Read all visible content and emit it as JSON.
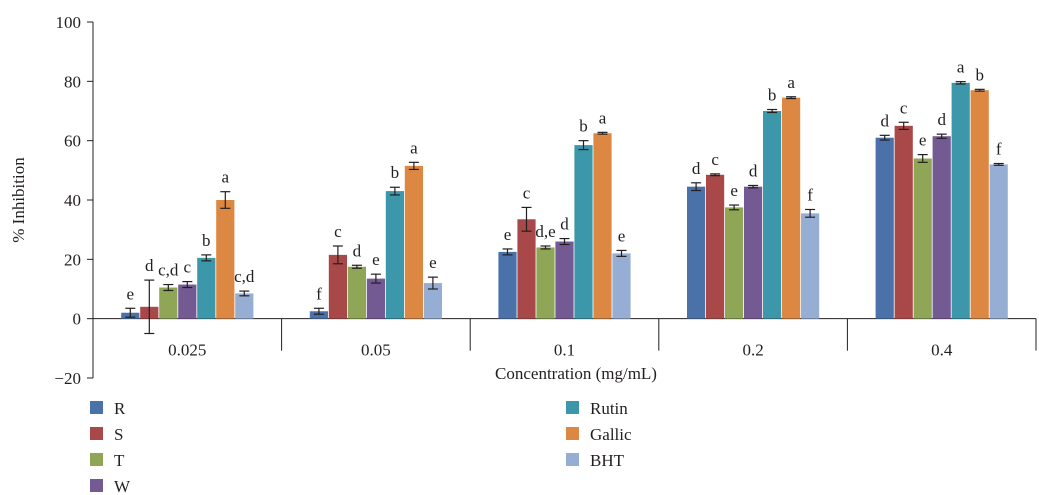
{
  "chart_data": {
    "type": "bar",
    "title": "",
    "xlabel": "Concentration (mg/mL)",
    "ylabel": "% Inhibition",
    "ylim": [
      -20,
      100
    ],
    "yticks": [
      -20,
      0,
      20,
      40,
      60,
      80,
      100
    ],
    "grid": false,
    "error_bars": true,
    "categories": [
      "0.025",
      "0.05",
      "0.1",
      "0.2",
      "0.4"
    ],
    "series": [
      {
        "name": "R",
        "color": "#4a72a8",
        "values": [
          2,
          2.5,
          22.5,
          44.5,
          61
        ],
        "errors": [
          1.5,
          1,
          1,
          1.3,
          0.8
        ],
        "labels": [
          "e",
          "f",
          "e",
          "d",
          "d"
        ]
      },
      {
        "name": "S",
        "color": "#a94848",
        "values": [
          4,
          21.5,
          33.5,
          48.5,
          65
        ],
        "errors": [
          9,
          3,
          4,
          0.3,
          1.2
        ],
        "labels": [
          "d",
          "c",
          "c",
          "c",
          "c"
        ]
      },
      {
        "name": "T",
        "color": "#8ea656",
        "values": [
          10.5,
          17.5,
          24,
          37.5,
          54
        ],
        "errors": [
          1,
          0.5,
          0.5,
          0.8,
          1.3
        ],
        "labels": [
          "c,d",
          "d",
          "d,e",
          "e",
          "e"
        ]
      },
      {
        "name": "W",
        "color": "#735a92",
        "values": [
          11.5,
          13.5,
          26,
          44.5,
          61.5
        ],
        "errors": [
          1,
          1.5,
          1,
          0.4,
          0.7
        ],
        "labels": [
          "c",
          "e",
          "d",
          "d",
          "d"
        ]
      },
      {
        "name": "Rutin",
        "color": "#3d97aa",
        "values": [
          20.5,
          43,
          58.5,
          70,
          79.5
        ],
        "errors": [
          1,
          1.3,
          1.5,
          0.5,
          0.4
        ],
        "labels": [
          "b",
          "b",
          "b",
          "b",
          "a"
        ]
      },
      {
        "name": "Gallic",
        "color": "#dc8843",
        "values": [
          40,
          51.5,
          62.5,
          74.5,
          77
        ],
        "errors": [
          2.8,
          1.2,
          0.3,
          0.3,
          0.3
        ],
        "labels": [
          "a",
          "a",
          "a",
          "a",
          "b"
        ]
      },
      {
        "name": "BHT",
        "color": "#97aed4",
        "values": [
          8.5,
          12,
          22,
          35.5,
          52
        ],
        "errors": [
          0.8,
          2,
          1,
          1.3,
          0.3
        ],
        "labels": [
          "c,d",
          "e",
          "e",
          "f",
          "f"
        ]
      }
    ],
    "legend": {
      "placement": "bottom",
      "columns": 2
    }
  }
}
